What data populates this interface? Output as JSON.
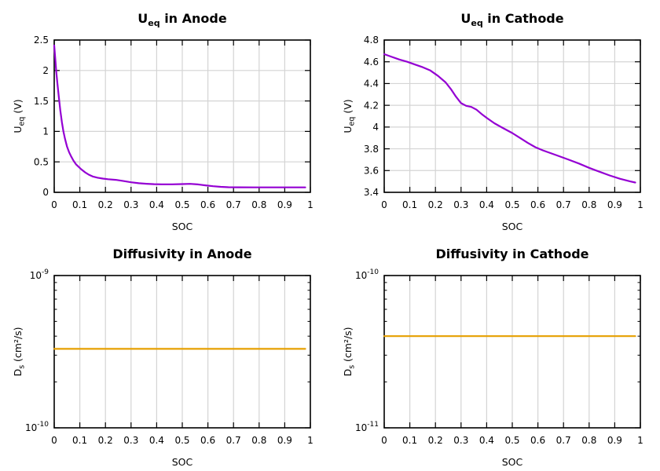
{
  "figure": {
    "background": "#ffffff",
    "rows": 2,
    "columns": 2
  },
  "chart_data": [
    {
      "type": "line",
      "title": {
        "text": "U_eq in Anode",
        "pre": "U",
        "sub": "eq",
        "post": " in Anode"
      },
      "xlabel": "SOC",
      "ylabel": {
        "text": "U_eq (V)",
        "pre": "U",
        "sub": "eq",
        "post": " (V)"
      },
      "x": {
        "min": 0,
        "max": 1,
        "ticks": [
          {
            "v": 0,
            "label": "0"
          },
          {
            "v": 0.1,
            "label": "0.1"
          },
          {
            "v": 0.2,
            "label": "0.2"
          },
          {
            "v": 0.3,
            "label": "0.3"
          },
          {
            "v": 0.4,
            "label": "0.4"
          },
          {
            "v": 0.5,
            "label": "0.5"
          },
          {
            "v": 0.6,
            "label": "0.6"
          },
          {
            "v": 0.7,
            "label": "0.7"
          },
          {
            "v": 0.8,
            "label": "0.8"
          },
          {
            "v": 0.9,
            "label": "0.9"
          },
          {
            "v": 1,
            "label": "1"
          }
        ]
      },
      "y": {
        "scale": "linear",
        "min": 0,
        "max": 2.5,
        "ticks": [
          {
            "v": 0,
            "label": "0"
          },
          {
            "v": 0.5,
            "label": "0.5"
          },
          {
            "v": 1,
            "label": "1"
          },
          {
            "v": 1.5,
            "label": "1.5"
          },
          {
            "v": 2,
            "label": "2"
          },
          {
            "v": 2.5,
            "label": "2.5"
          }
        ]
      },
      "grid": {
        "vertical": true,
        "horizontal": true,
        "color": "#d4d4d4"
      },
      "series": [
        {
          "name": "equilibrium-potential-anode",
          "color": "#9400d3",
          "width": 2.2,
          "points": [
            [
              0,
              2.41
            ],
            [
              0.004,
              2.2
            ],
            [
              0.008,
              1.98
            ],
            [
              0.013,
              1.77
            ],
            [
              0.018,
              1.56
            ],
            [
              0.024,
              1.34
            ],
            [
              0.03,
              1.15
            ],
            [
              0.036,
              1.0
            ],
            [
              0.042,
              0.88
            ],
            [
              0.05,
              0.75
            ],
            [
              0.058,
              0.66
            ],
            [
              0.066,
              0.59
            ],
            [
              0.075,
              0.52
            ],
            [
              0.085,
              0.46
            ],
            [
              0.095,
              0.42
            ],
            [
              0.105,
              0.38
            ],
            [
              0.12,
              0.33
            ],
            [
              0.135,
              0.29
            ],
            [
              0.15,
              0.26
            ],
            [
              0.17,
              0.24
            ],
            [
              0.19,
              0.225
            ],
            [
              0.21,
              0.215
            ],
            [
              0.24,
              0.205
            ],
            [
              0.27,
              0.185
            ],
            [
              0.3,
              0.165
            ],
            [
              0.33,
              0.15
            ],
            [
              0.36,
              0.14
            ],
            [
              0.39,
              0.134
            ],
            [
              0.42,
              0.131
            ],
            [
              0.46,
              0.131
            ],
            [
              0.5,
              0.135
            ],
            [
              0.53,
              0.139
            ],
            [
              0.56,
              0.13
            ],
            [
              0.59,
              0.115
            ],
            [
              0.62,
              0.1
            ],
            [
              0.65,
              0.09
            ],
            [
              0.68,
              0.084
            ],
            [
              0.72,
              0.082
            ],
            [
              0.78,
              0.081
            ],
            [
              0.84,
              0.081
            ],
            [
              0.9,
              0.081
            ],
            [
              0.98,
              0.081
            ]
          ]
        }
      ]
    },
    {
      "type": "line",
      "title": {
        "text": "U_eq in Cathode",
        "pre": "U",
        "sub": "eq",
        "post": " in Cathode"
      },
      "xlabel": "SOC",
      "ylabel": {
        "text": "U_eq (V)",
        "pre": "U",
        "sub": "eq",
        "post": " (V)"
      },
      "x": {
        "min": 0,
        "max": 1,
        "ticks": [
          {
            "v": 0,
            "label": "0"
          },
          {
            "v": 0.1,
            "label": "0.1"
          },
          {
            "v": 0.2,
            "label": "0.2"
          },
          {
            "v": 0.3,
            "label": "0.3"
          },
          {
            "v": 0.4,
            "label": "0.4"
          },
          {
            "v": 0.5,
            "label": "0.5"
          },
          {
            "v": 0.6,
            "label": "0.6"
          },
          {
            "v": 0.7,
            "label": "0.7"
          },
          {
            "v": 0.8,
            "label": "0.8"
          },
          {
            "v": 0.9,
            "label": "0.9"
          },
          {
            "v": 1,
            "label": "1"
          }
        ]
      },
      "y": {
        "scale": "linear",
        "min": 3.4,
        "max": 4.8,
        "ticks": [
          {
            "v": 3.4,
            "label": "3.4"
          },
          {
            "v": 3.6,
            "label": "3.6"
          },
          {
            "v": 3.8,
            "label": "3.8"
          },
          {
            "v": 4,
            "label": "4"
          },
          {
            "v": 4.2,
            "label": "4.2"
          },
          {
            "v": 4.4,
            "label": "4.4"
          },
          {
            "v": 4.6,
            "label": "4.6"
          },
          {
            "v": 4.8,
            "label": "4.8"
          }
        ]
      },
      "grid": {
        "vertical": true,
        "horizontal": true,
        "color": "#d4d4d4"
      },
      "series": [
        {
          "name": "equilibrium-potential-cathode",
          "color": "#9400d3",
          "width": 2.2,
          "points": [
            [
              0,
              4.67
            ],
            [
              0.03,
              4.645
            ],
            [
              0.06,
              4.62
            ],
            [
              0.09,
              4.6
            ],
            [
              0.12,
              4.575
            ],
            [
              0.15,
              4.55
            ],
            [
              0.18,
              4.52
            ],
            [
              0.21,
              4.47
            ],
            [
              0.24,
              4.41
            ],
            [
              0.26,
              4.35
            ],
            [
              0.28,
              4.28
            ],
            [
              0.3,
              4.22
            ],
            [
              0.32,
              4.195
            ],
            [
              0.34,
              4.185
            ],
            [
              0.36,
              4.16
            ],
            [
              0.38,
              4.12
            ],
            [
              0.4,
              4.085
            ],
            [
              0.43,
              4.035
            ],
            [
              0.46,
              3.995
            ],
            [
              0.5,
              3.945
            ],
            [
              0.53,
              3.9
            ],
            [
              0.56,
              3.855
            ],
            [
              0.59,
              3.815
            ],
            [
              0.62,
              3.785
            ],
            [
              0.65,
              3.76
            ],
            [
              0.68,
              3.735
            ],
            [
              0.72,
              3.7
            ],
            [
              0.76,
              3.665
            ],
            [
              0.8,
              3.625
            ],
            [
              0.84,
              3.59
            ],
            [
              0.88,
              3.555
            ],
            [
              0.92,
              3.525
            ],
            [
              0.96,
              3.5
            ],
            [
              0.98,
              3.49
            ]
          ]
        }
      ]
    },
    {
      "type": "line",
      "title": {
        "text": "Diffusivity in Anode",
        "pre": "",
        "sub": "",
        "post": "Diffusivity in Anode"
      },
      "xlabel": "SOC",
      "ylabel": {
        "text": "D_s (cm²/s)",
        "pre": "D",
        "sub": "s",
        "post": " (cm²/s)"
      },
      "x": {
        "min": 0,
        "max": 1,
        "ticks": [
          {
            "v": 0,
            "label": "0"
          },
          {
            "v": 0.1,
            "label": "0.1"
          },
          {
            "v": 0.2,
            "label": "0.2"
          },
          {
            "v": 0.3,
            "label": "0.3"
          },
          {
            "v": 0.4,
            "label": "0.4"
          },
          {
            "v": 0.5,
            "label": "0.5"
          },
          {
            "v": 0.6,
            "label": "0.6"
          },
          {
            "v": 0.7,
            "label": "0.7"
          },
          {
            "v": 0.8,
            "label": "0.8"
          },
          {
            "v": 0.9,
            "label": "0.9"
          },
          {
            "v": 1,
            "label": "1"
          }
        ]
      },
      "y": {
        "scale": "log",
        "min": 1e-10,
        "max": 1e-09,
        "ticks": [
          {
            "v": 1e-10,
            "base": "10",
            "exp": "-10"
          },
          {
            "v": 1e-09,
            "base": "10",
            "exp": "-9"
          }
        ]
      },
      "grid": {
        "vertical": true,
        "horizontal": false,
        "color": "#d4d4d4"
      },
      "series": [
        {
          "name": "solid-diffusivity-anode",
          "color": "#e69f00",
          "width": 2.2,
          "constant_value": 3.3e-10,
          "points": [
            [
              0,
              3.3e-10
            ],
            [
              0.98,
              3.3e-10
            ]
          ]
        }
      ]
    },
    {
      "type": "line",
      "title": {
        "text": "Diffusivity in Cathode",
        "pre": "",
        "sub": "",
        "post": "Diffusivity in Cathode"
      },
      "xlabel": "SOC",
      "ylabel": {
        "text": "D_s (cm²/s)",
        "pre": "D",
        "sub": "s",
        "post": " (cm²/s)"
      },
      "x": {
        "min": 0,
        "max": 1,
        "ticks": [
          {
            "v": 0,
            "label": "0"
          },
          {
            "v": 0.1,
            "label": "0.1"
          },
          {
            "v": 0.2,
            "label": "0.2"
          },
          {
            "v": 0.3,
            "label": "0.3"
          },
          {
            "v": 0.4,
            "label": "0.4"
          },
          {
            "v": 0.5,
            "label": "0.5"
          },
          {
            "v": 0.6,
            "label": "0.6"
          },
          {
            "v": 0.7,
            "label": "0.7"
          },
          {
            "v": 0.8,
            "label": "0.8"
          },
          {
            "v": 0.9,
            "label": "0.9"
          },
          {
            "v": 1,
            "label": "1"
          }
        ]
      },
      "y": {
        "scale": "log",
        "min": 1e-11,
        "max": 1e-10,
        "ticks": [
          {
            "v": 1e-11,
            "base": "10",
            "exp": "-11"
          },
          {
            "v": 1e-10,
            "base": "10",
            "exp": "-10"
          }
        ]
      },
      "grid": {
        "vertical": true,
        "horizontal": false,
        "color": "#d4d4d4"
      },
      "series": [
        {
          "name": "solid-diffusivity-cathode",
          "color": "#e69f00",
          "width": 2.2,
          "constant_value": 4e-11,
          "points": [
            [
              0,
              4e-11
            ],
            [
              0.98,
              4e-11
            ]
          ]
        }
      ]
    }
  ]
}
